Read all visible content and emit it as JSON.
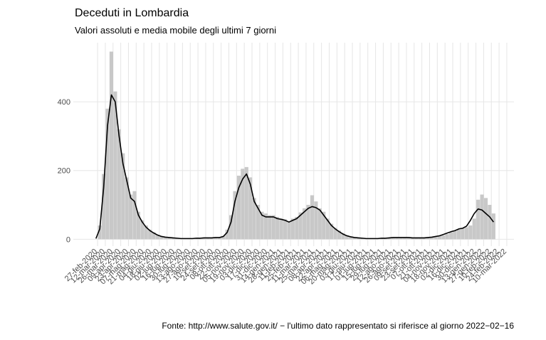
{
  "chart_data": {
    "type": "bar-line",
    "title": "Deceduti in Lombardia",
    "subtitle": "Valori assoluti e media mobile degli ultimi 7 giorni",
    "caption": "Fonte: http://www.salute.gov.it/ − l'ultimo dato rappresentato si riferisce al giorno 2022−02−16",
    "x": [
      "2020-02-24",
      "2020-03-02",
      "2020-03-09",
      "2020-03-16",
      "2020-03-23",
      "2020-03-30",
      "2020-04-06",
      "2020-04-13",
      "2020-04-20",
      "2020-04-27",
      "2020-05-04",
      "2020-05-11",
      "2020-05-18",
      "2020-05-25",
      "2020-06-01",
      "2020-06-08",
      "2020-06-15",
      "2020-06-22",
      "2020-06-29",
      "2020-07-06",
      "2020-07-13",
      "2020-07-20",
      "2020-07-27",
      "2020-08-03",
      "2020-08-10",
      "2020-08-17",
      "2020-08-24",
      "2020-08-31",
      "2020-09-07",
      "2020-09-14",
      "2020-09-21",
      "2020-09-28",
      "2020-10-05",
      "2020-10-12",
      "2020-10-19",
      "2020-10-26",
      "2020-11-02",
      "2020-11-09",
      "2020-11-16",
      "2020-11-23",
      "2020-11-30",
      "2020-12-07",
      "2020-12-14",
      "2020-12-21",
      "2020-12-28",
      "2021-01-04",
      "2021-01-11",
      "2021-01-18",
      "2021-01-25",
      "2021-02-01",
      "2021-02-08",
      "2021-02-15",
      "2021-02-22",
      "2021-03-01",
      "2021-03-08",
      "2021-03-15",
      "2021-03-22",
      "2021-03-29",
      "2021-04-05",
      "2021-04-12",
      "2021-04-19",
      "2021-04-26",
      "2021-05-03",
      "2021-05-10",
      "2021-05-17",
      "2021-05-24",
      "2021-05-31",
      "2021-06-07",
      "2021-06-14",
      "2021-06-21",
      "2021-06-28",
      "2021-07-05",
      "2021-07-12",
      "2021-07-19",
      "2021-07-26",
      "2021-08-02",
      "2021-08-09",
      "2021-08-16",
      "2021-08-23",
      "2021-08-30",
      "2021-09-06",
      "2021-09-13",
      "2021-09-20",
      "2021-09-27",
      "2021-10-04",
      "2021-10-11",
      "2021-10-18",
      "2021-10-25",
      "2021-11-01",
      "2021-11-08",
      "2021-11-15",
      "2021-11-22",
      "2021-11-29",
      "2021-12-06",
      "2021-12-13",
      "2021-12-20",
      "2021-12-27",
      "2022-01-03",
      "2022-01-10",
      "2022-01-17",
      "2022-01-24",
      "2022-01-31",
      "2022-02-07",
      "2022-02-14"
    ],
    "series": [
      {
        "color": "#c8c8c8",
        "values": [
          0,
          40,
          190,
          380,
          546,
          430,
          320,
          250,
          180,
          130,
          140,
          80,
          55,
          40,
          28,
          20,
          13,
          9,
          7,
          5,
          4,
          3,
          2,
          2,
          3,
          2,
          4,
          3,
          5,
          4,
          5,
          6,
          6,
          10,
          28,
          70,
          140,
          185,
          205,
          210,
          180,
          120,
          100,
          80,
          75,
          70,
          70,
          65,
          60,
          58,
          52,
          60,
          65,
          78,
          90,
          100,
          128,
          110,
          90,
          80,
          60,
          45,
          33,
          25,
          18,
          12,
          8,
          6,
          4,
          3,
          2,
          2,
          2,
          3,
          3,
          3,
          4,
          5,
          6,
          5,
          6,
          6,
          5,
          5,
          5,
          5,
          5,
          6,
          7,
          9,
          11,
          15,
          20,
          24,
          28,
          32,
          35,
          40,
          60,
          115,
          130,
          120,
          100,
          75
        ]
      },
      {
        "color": "#000000",
        "values": [
          2,
          30,
          150,
          330,
          420,
          400,
          300,
          220,
          170,
          120,
          110,
          70,
          50,
          35,
          25,
          18,
          12,
          8,
          6,
          5,
          4,
          3,
          2,
          2,
          2,
          2,
          3,
          3,
          4,
          4,
          4,
          5,
          5,
          8,
          20,
          50,
          110,
          150,
          175,
          190,
          160,
          110,
          90,
          70,
          65,
          65,
          65,
          60,
          58,
          55,
          50,
          55,
          60,
          70,
          80,
          90,
          95,
          92,
          85,
          70,
          55,
          40,
          30,
          22,
          15,
          10,
          7,
          5,
          4,
          3,
          2,
          2,
          2,
          2,
          3,
          3,
          4,
          5,
          5,
          5,
          5,
          5,
          4,
          4,
          4,
          4,
          5,
          6,
          8,
          10,
          14,
          18,
          22,
          25,
          30,
          32,
          38,
          55,
          75,
          88,
          85,
          75,
          65,
          50
        ]
      }
    ],
    "xlim": [
      "2020-01-14",
      "2022-03-23"
    ],
    "xticks": [
      {
        "value": "2020-02-27",
        "label": "27-feb-2020"
      },
      {
        "value": "2020-03-12",
        "label": "12-mar-2020"
      },
      {
        "value": "2020-03-26",
        "label": "26-mar-2020"
      },
      {
        "value": "2020-04-09",
        "label": "09-apr-2020"
      },
      {
        "value": "2020-04-23",
        "label": "23-apr-2020"
      },
      {
        "value": "2020-05-07",
        "label": "07-mag-2020"
      },
      {
        "value": "2020-05-21",
        "label": "21-mag-2020"
      },
      {
        "value": "2020-06-04",
        "label": "04-giu-2020"
      },
      {
        "value": "2020-06-18",
        "label": "18-giu-2020"
      },
      {
        "value": "2020-07-02",
        "label": "02-lug-2020"
      },
      {
        "value": "2020-07-16",
        "label": "16-lug-2020"
      },
      {
        "value": "2020-07-30",
        "label": "30-lug-2020"
      },
      {
        "value": "2020-08-13",
        "label": "13-ago-2020"
      },
      {
        "value": "2020-08-27",
        "label": "27-ago-2020"
      },
      {
        "value": "2020-09-10",
        "label": "10-set-2020"
      },
      {
        "value": "2020-09-24",
        "label": "24-set-2020"
      },
      {
        "value": "2020-10-08",
        "label": "08-ott-2020"
      },
      {
        "value": "2020-10-22",
        "label": "22-ott-2020"
      },
      {
        "value": "2020-11-05",
        "label": "05-nov-2020"
      },
      {
        "value": "2020-11-19",
        "label": "19-nov-2020"
      },
      {
        "value": "2020-12-03",
        "label": "03-dic-2020"
      },
      {
        "value": "2020-12-17",
        "label": "17-dic-2020"
      },
      {
        "value": "2020-12-31",
        "label": "31-dic-2020"
      },
      {
        "value": "2021-01-14",
        "label": "14-gen-2021"
      },
      {
        "value": "2021-01-28",
        "label": "28-gen-2021"
      },
      {
        "value": "2021-02-11",
        "label": "11-feb-2021"
      },
      {
        "value": "2021-02-25",
        "label": "25-feb-2021"
      },
      {
        "value": "2021-03-11",
        "label": "11-mar-2021"
      },
      {
        "value": "2021-03-25",
        "label": "25-mar-2021"
      },
      {
        "value": "2021-04-08",
        "label": "08-apr-2021"
      },
      {
        "value": "2021-04-22",
        "label": "22-apr-2021"
      },
      {
        "value": "2021-05-06",
        "label": "06-mag-2021"
      },
      {
        "value": "2021-05-20",
        "label": "20-mag-2021"
      },
      {
        "value": "2021-06-03",
        "label": "03-giu-2021"
      },
      {
        "value": "2021-06-17",
        "label": "17-giu-2021"
      },
      {
        "value": "2021-07-01",
        "label": "01-lug-2021"
      },
      {
        "value": "2021-07-15",
        "label": "15-lug-2021"
      },
      {
        "value": "2021-07-29",
        "label": "29-lug-2021"
      },
      {
        "value": "2021-08-12",
        "label": "12-ago-2021"
      },
      {
        "value": "2021-08-26",
        "label": "26-ago-2021"
      },
      {
        "value": "2021-09-09",
        "label": "09-set-2021"
      },
      {
        "value": "2021-09-23",
        "label": "23-set-2021"
      },
      {
        "value": "2021-10-07",
        "label": "07-ott-2021"
      },
      {
        "value": "2021-10-21",
        "label": "21-ott-2021"
      },
      {
        "value": "2021-11-04",
        "label": "04-nov-2021"
      },
      {
        "value": "2021-11-18",
        "label": "18-nov-2021"
      },
      {
        "value": "2021-12-02",
        "label": "02-dic-2021"
      },
      {
        "value": "2021-12-16",
        "label": "16-dic-2021"
      },
      {
        "value": "2021-12-30",
        "label": "30-dic-2021"
      },
      {
        "value": "2022-01-13",
        "label": "13-gen-2022"
      },
      {
        "value": "2022-01-27",
        "label": "27-gen-2022"
      },
      {
        "value": "2022-02-10",
        "label": "10-feb-2022"
      },
      {
        "value": "2022-02-24",
        "label": "24-feb-2022"
      },
      {
        "value": "2022-03-10",
        "label": "10-mar-2022"
      }
    ],
    "ylim": [
      -20,
      572
    ],
    "yticks": [
      0,
      200,
      400
    ],
    "grid": true
  }
}
